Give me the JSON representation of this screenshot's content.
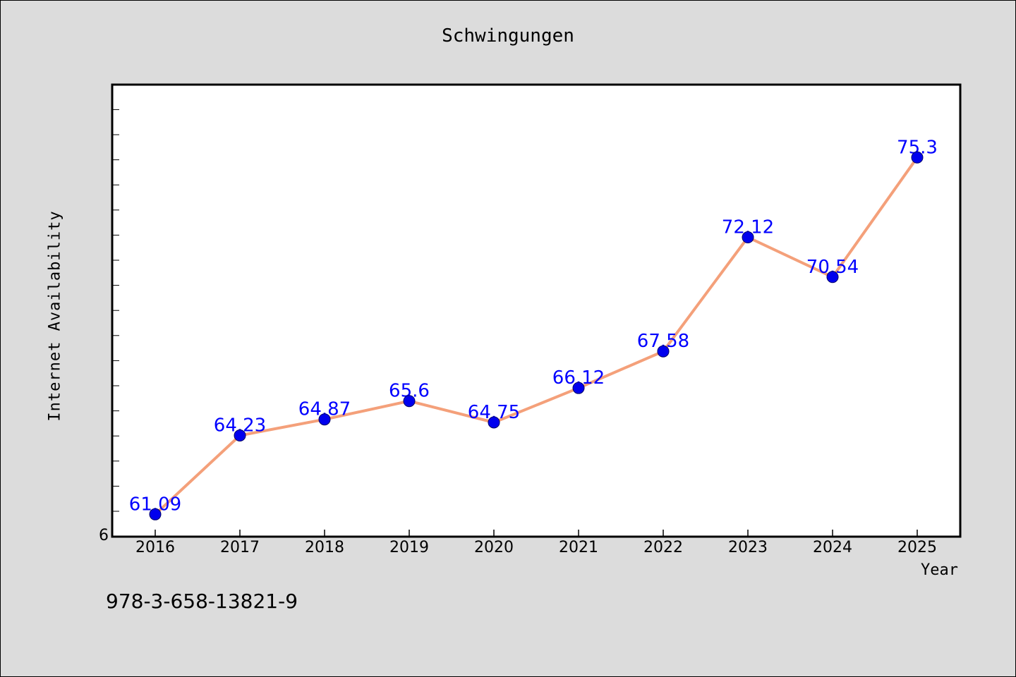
{
  "chart_data": {
    "type": "line",
    "title": "Schwingungen",
    "xlabel": "Year",
    "ylabel": "Internet Availability",
    "x": [
      "2016",
      "2017",
      "2018",
      "2019",
      "2020",
      "2021",
      "2022",
      "2023",
      "2024",
      "2025"
    ],
    "series": [
      {
        "values": [
          61.09,
          64.23,
          64.87,
          65.6,
          64.75,
          66.12,
          67.58,
          72.12,
          70.54,
          75.3
        ],
        "labels": [
          "61.09",
          "64.23",
          "64.87",
          "65.6",
          "64.75",
          "66.12",
          "67.58",
          "72.12",
          "70.54",
          "75.3"
        ]
      }
    ],
    "y_tick_label": "6",
    "ylim": [
      60.2,
      78.2
    ],
    "grid": false,
    "legend": "none",
    "colors": {
      "line": "#f4a07a",
      "marker": "#0000ee",
      "data_label": "#0000ff",
      "background": "#dcdcdc",
      "plot_bg": "#ffffff"
    }
  },
  "footer": {
    "isbn": "978-3-658-13821-9"
  }
}
